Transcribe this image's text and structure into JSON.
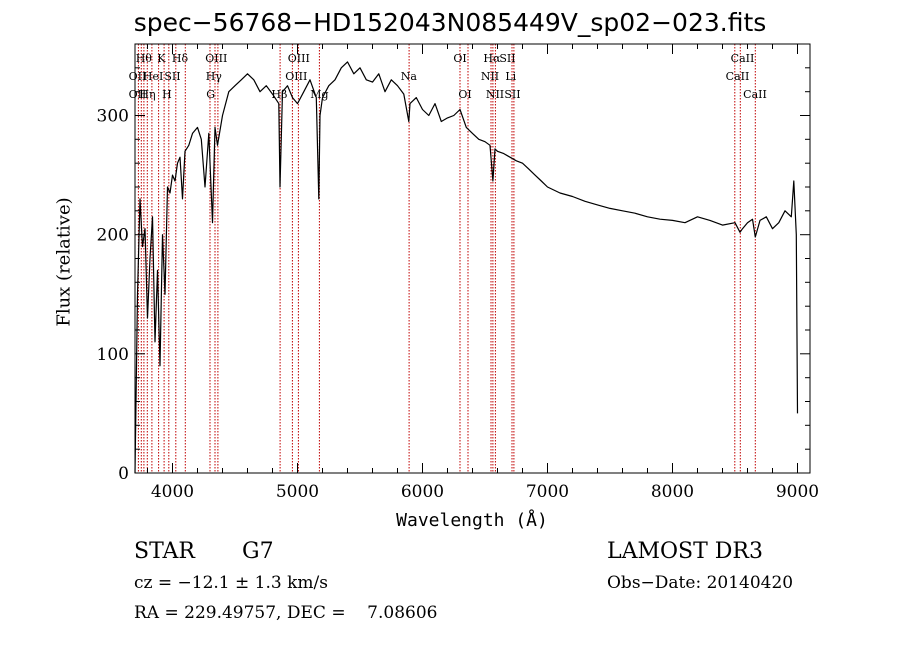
{
  "chart_data": {
    "type": "line",
    "title": "spec−56768−HD152043N085449V_sp02−023.fits",
    "xlabel": "Wavelength (Å)",
    "ylabel": "Flux (relative)",
    "xlim": [
      3700,
      9100
    ],
    "ylim": [
      0,
      360
    ],
    "x_ticks": [
      "4000",
      "5000",
      "6000",
      "7000",
      "8000",
      "9000"
    ],
    "y_ticks": [
      "0",
      "100",
      "200",
      "300"
    ],
    "grid": false,
    "series": [
      {
        "x": [
          3700,
          3720,
          3740,
          3760,
          3780,
          3800,
          3820,
          3840,
          3860,
          3880,
          3900,
          3920,
          3940,
          3960,
          3980,
          4000,
          4020,
          4040,
          4060,
          4080,
          4100,
          4130,
          4160,
          4200,
          4230,
          4260,
          4290,
          4320,
          4340,
          4360,
          4400,
          4450,
          4500,
          4550,
          4600,
          4650,
          4700,
          4750,
          4800,
          4850,
          4860,
          4880,
          4920,
          4960,
          5000,
          5050,
          5100,
          5150,
          5170,
          5180,
          5200,
          5250,
          5300,
          5350,
          5400,
          5450,
          5500,
          5550,
          5600,
          5650,
          5700,
          5750,
          5800,
          5850,
          5890,
          5900,
          5950,
          6000,
          6050,
          6100,
          6150,
          6200,
          6250,
          6300,
          6350,
          6400,
          6450,
          6500,
          6540,
          6563,
          6580,
          6600,
          6650,
          6700,
          6750,
          6800,
          6850,
          6900,
          6950,
          7000,
          7100,
          7200,
          7300,
          7400,
          7500,
          7600,
          7700,
          7800,
          7900,
          8000,
          8100,
          8200,
          8300,
          8400,
          8500,
          8540,
          8560,
          8600,
          8640,
          8662,
          8700,
          8750,
          8800,
          8850,
          8900,
          8950,
          8970,
          8990,
          9000
        ],
        "y": [
          0,
          150,
          230,
          190,
          205,
          130,
          180,
          215,
          110,
          170,
          90,
          200,
          150,
          240,
          235,
          250,
          245,
          260,
          265,
          230,
          270,
          275,
          285,
          290,
          280,
          240,
          285,
          210,
          290,
          275,
          300,
          320,
          325,
          330,
          335,
          330,
          320,
          325,
          318,
          310,
          240,
          320,
          325,
          315,
          310,
          320,
          330,
          315,
          230,
          300,
          315,
          325,
          330,
          340,
          345,
          335,
          340,
          330,
          328,
          335,
          320,
          330,
          325,
          318,
          295,
          310,
          315,
          305,
          300,
          310,
          295,
          298,
          300,
          305,
          290,
          285,
          280,
          278,
          275,
          245,
          272,
          270,
          268,
          265,
          262,
          260,
          255,
          250,
          245,
          240,
          235,
          232,
          228,
          225,
          222,
          220,
          218,
          215,
          213,
          212,
          210,
          215,
          212,
          208,
          210,
          202,
          205,
          210,
          213,
          198,
          212,
          215,
          205,
          210,
          220,
          215,
          245,
          200,
          50
        ],
        "color": "#000000"
      }
    ],
    "lines": {
      "wavelengths": [
        3727,
        3750,
        3771,
        3798,
        3835,
        3889,
        3933,
        3970,
        4026,
        4102,
        4300,
        4340,
        4363,
        4861,
        4959,
        5007,
        5175,
        5893,
        6300,
        6364,
        6548,
        6563,
        6583,
        6716,
        6731,
        8498,
        8542,
        8662
      ],
      "color": "#c00000",
      "labels": [
        {
          "text": "Hθ",
          "x": 3770,
          "row": 0
        },
        {
          "text": "K",
          "x": 3910,
          "row": 0
        },
        {
          "text": "Hδ",
          "x": 4060,
          "row": 0
        },
        {
          "text": "OIII",
          "x": 4350,
          "row": 0
        },
        {
          "text": "OIII",
          "x": 5010,
          "row": 0
        },
        {
          "text": "OI",
          "x": 6300,
          "row": 0
        },
        {
          "text": "Hα",
          "x": 6555,
          "row": 0
        },
        {
          "text": "SII",
          "x": 6680,
          "row": 0
        },
        {
          "text": "CaII",
          "x": 8560,
          "row": 0
        },
        {
          "text": "OII",
          "x": 3720,
          "row": 1
        },
        {
          "text": "HeI",
          "x": 3845,
          "row": 1
        },
        {
          "text": "SII",
          "x": 4000,
          "row": 1
        },
        {
          "text": "Hγ",
          "x": 4330,
          "row": 1
        },
        {
          "text": "OIII",
          "x": 4990,
          "row": 1
        },
        {
          "text": "Na",
          "x": 5890,
          "row": 1
        },
        {
          "text": "NII",
          "x": 6540,
          "row": 1
        },
        {
          "text": "Li",
          "x": 6706,
          "row": 1
        },
        {
          "text": "CaII",
          "x": 8520,
          "row": 1
        },
        {
          "text": "OII",
          "x": 3720,
          "row": 2
        },
        {
          "text": "Hη",
          "x": 3800,
          "row": 2
        },
        {
          "text": "H",
          "x": 3955,
          "row": 2
        },
        {
          "text": "G",
          "x": 4305,
          "row": 2
        },
        {
          "text": "Hβ",
          "x": 4855,
          "row": 2
        },
        {
          "text": "Mg",
          "x": 5175,
          "row": 2
        },
        {
          "text": "OI",
          "x": 6340,
          "row": 2
        },
        {
          "text": "NII",
          "x": 6580,
          "row": 2
        },
        {
          "text": "SII",
          "x": 6720,
          "row": 2
        },
        {
          "text": "CaII",
          "x": 8660,
          "row": 2
        }
      ]
    }
  },
  "info": {
    "class": "STAR",
    "subclass": "G7",
    "survey": "LAMOST DR3",
    "cz": "cz = −12.1 ± 1.3 km/s",
    "obs_date": "Obs−Date: 20140420",
    "radec": "RA = 229.49757, DEC =    7.08606"
  }
}
